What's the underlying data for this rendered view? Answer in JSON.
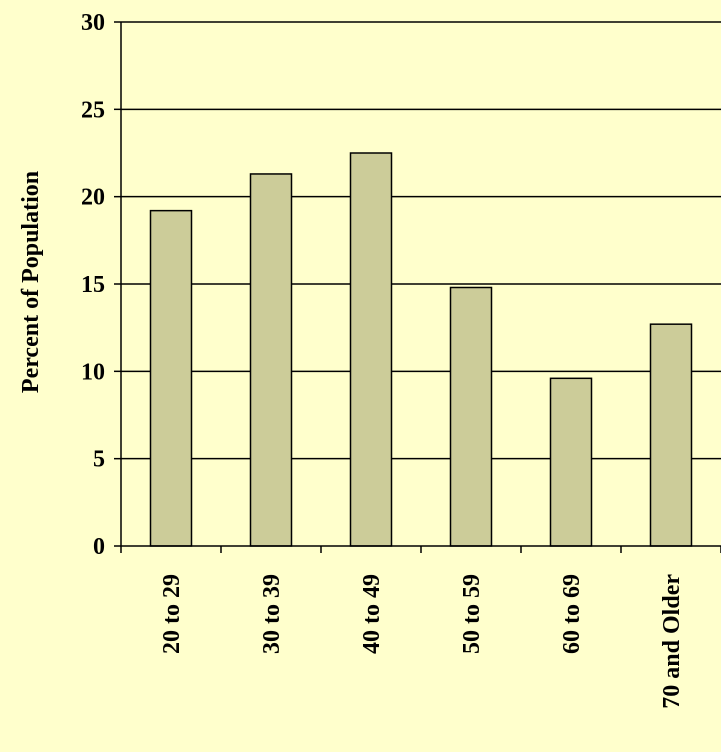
{
  "chart_data": {
    "type": "bar",
    "title": "",
    "xlabel": "",
    "ylabel": "Percent of Population",
    "categories": [
      "20 to 29",
      "30 to 39",
      "40 to 49",
      "50 to 59",
      "60 to 69",
      "70 and Older"
    ],
    "values": [
      19.2,
      21.3,
      22.5,
      14.8,
      9.6,
      12.7
    ],
    "ylim": [
      0,
      30
    ],
    "yticks": [
      0,
      5,
      10,
      15,
      20,
      25,
      30
    ],
    "ytick_labels": [
      "0",
      "5",
      "10",
      "15",
      "20",
      "25",
      "30"
    ],
    "grid": true,
    "legend": "none",
    "colors": {
      "bar_fill": "#cccc99",
      "bar_stroke": "#000000",
      "background": "#ffffcc",
      "gridline": "#000000"
    }
  }
}
